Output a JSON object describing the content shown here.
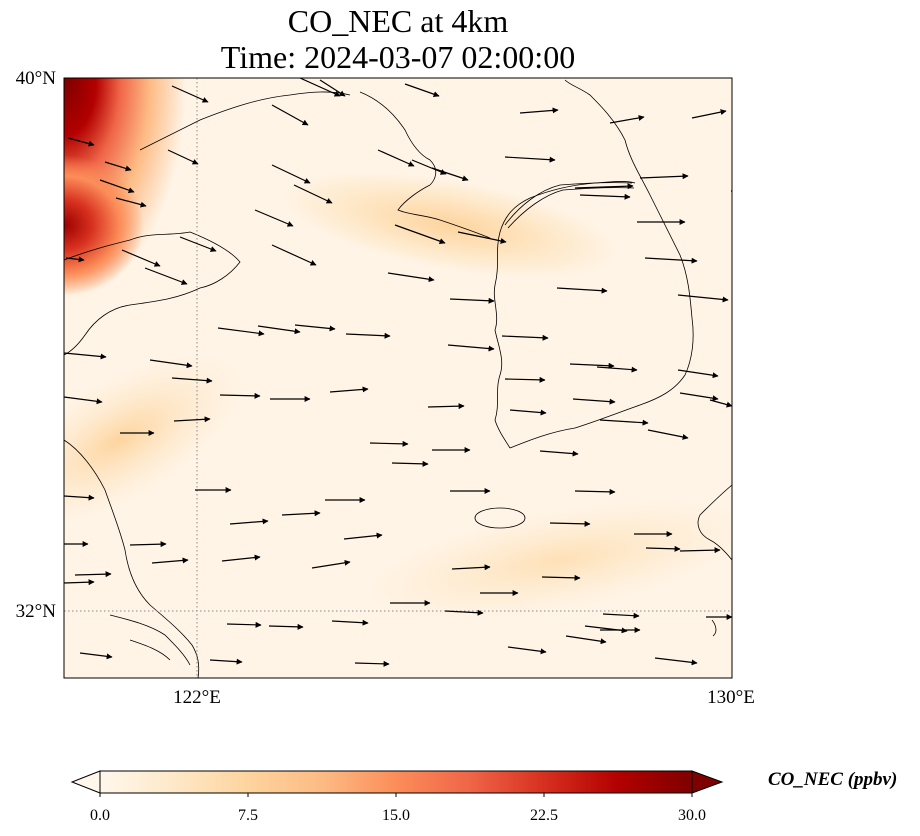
{
  "title": {
    "line1": "CO_NEC at 4km",
    "line2": "Time: 2024-03-07 02:00:00"
  },
  "axes": {
    "lat_ticks": [
      {
        "value": 40,
        "label": "40°N"
      },
      {
        "value": 32,
        "label": "32°N"
      }
    ],
    "lon_ticks": [
      {
        "value": 122,
        "label": "122°E"
      },
      {
        "value": 130,
        "label": "130°E"
      }
    ],
    "lon_range": [
      120,
      130
    ],
    "lat_range": [
      31,
      40
    ],
    "gridlines": "dotted"
  },
  "colorbar": {
    "title": "CO_NEC (ppbv)",
    "colormap": "OrRd",
    "range": [
      0,
      30
    ],
    "extend": "both",
    "tick_labels": [
      "0.0",
      "7.5",
      "15.0",
      "22.5",
      "30.0"
    ],
    "tick_values": [
      0,
      7.5,
      15,
      22.5,
      30
    ],
    "colors": [
      "#fff7ec",
      "#fee8c8",
      "#fdd49e",
      "#fdbb84",
      "#fc8d59",
      "#ef6548",
      "#d7301f",
      "#b30000",
      "#7f0000"
    ]
  },
  "chart_data": {
    "type": "heatmap",
    "variable": "CO_NEC",
    "units": "ppbv",
    "high_concentration_region": "north-west corner near 40°N 120°E, values up to ~30 ppbv",
    "moderate_plume": "band from Shandong coast across Yellow Sea toward Korean west coast near 37.5°N, ~8–12 ppbv",
    "background": "0–5 ppbv over most of the domain",
    "wind_vectors": "predominantly westerly to west-north-westerly flow"
  }
}
